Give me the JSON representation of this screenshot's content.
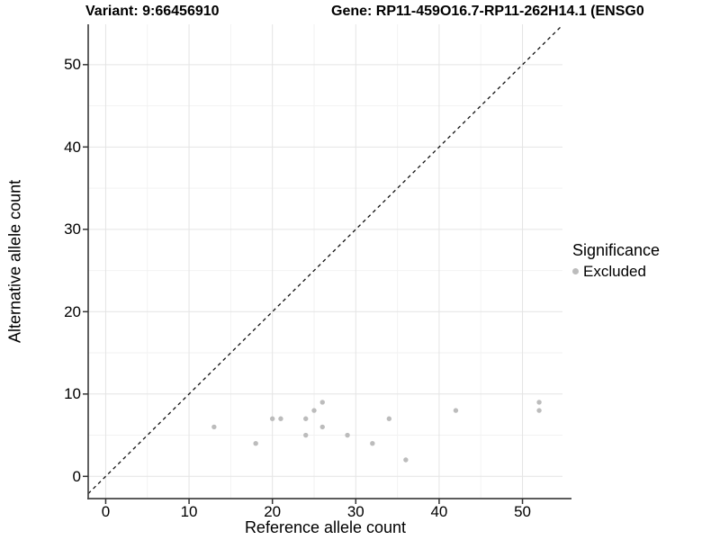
{
  "header": {
    "variant_title": "Variant: 9:66456910",
    "gene_title": "Gene: RP11-459O16.7-RP11-262H14.1 (ENSG0"
  },
  "legend": {
    "title": "Significance",
    "items": [
      {
        "label": "Excluded",
        "color": "#bcbcbc"
      }
    ]
  },
  "chart_data": {
    "type": "scatter",
    "title_left": "Variant: 9:66456910",
    "title_right": "Gene: RP11-459O16.7-RP11-262H14.1 (ENSG0",
    "xlabel": "Reference allele count",
    "ylabel": "Alternative allele count",
    "xlim": [
      -2.1,
      54.8
    ],
    "ylim": [
      -2.7,
      54.9
    ],
    "xticks": [
      0,
      10,
      20,
      30,
      40,
      50
    ],
    "yticks": [
      0,
      10,
      20,
      30,
      40,
      50
    ],
    "xminor": [
      5,
      15,
      25,
      35,
      45
    ],
    "yminor": [
      5,
      15,
      25,
      35,
      45
    ],
    "grid": "major+minor",
    "legend_position": "right",
    "series": [
      {
        "name": "Excluded",
        "color": "#bcbcbc",
        "points": [
          [
            13,
            6
          ],
          [
            18,
            4
          ],
          [
            20,
            7
          ],
          [
            21,
            7
          ],
          [
            24,
            5
          ],
          [
            24,
            7
          ],
          [
            25,
            8
          ],
          [
            26,
            6
          ],
          [
            26,
            9
          ],
          [
            29,
            5
          ],
          [
            32,
            4
          ],
          [
            34,
            7
          ],
          [
            36,
            2
          ],
          [
            42,
            8
          ],
          [
            52,
            8
          ],
          [
            52,
            9
          ]
        ]
      }
    ],
    "reference_line": {
      "type": "identity",
      "style": "dashed",
      "color": "#000000"
    }
  },
  "colors": {
    "point": "#bcbcbc",
    "grid_major": "#e4e4e4",
    "grid_minor": "#f2f2f2",
    "axis_line": "#454545",
    "tick_mark": "#333333",
    "dashed_line": "#111111",
    "background": "#ffffff"
  }
}
